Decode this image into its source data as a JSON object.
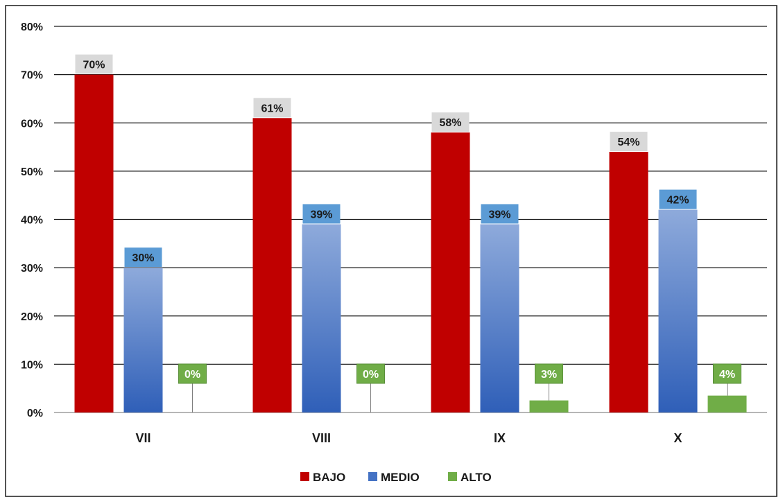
{
  "chart_data": {
    "type": "bar",
    "categories": [
      "VII",
      "VIII",
      "IX",
      "X"
    ],
    "series": [
      {
        "name": "BAJO",
        "values": [
          0.7,
          0.61,
          0.58,
          0.54
        ],
        "labels": [
          "70%",
          "61%",
          "58%",
          "54%"
        ],
        "color": "#c00000",
        "label_bg": "#d9d9d9"
      },
      {
        "name": "MEDIO",
        "values": [
          0.3,
          0.39,
          0.39,
          0.42
        ],
        "labels": [
          "30%",
          "39%",
          "39%",
          "42%"
        ],
        "color": "#4472c4",
        "label_bg": "#5b9bd5"
      },
      {
        "name": "ALTO",
        "values": [
          0.0,
          0.0,
          0.025,
          0.035
        ],
        "labels": [
          "0%",
          "0%",
          "3%",
          "4%"
        ],
        "color": "#70ad47",
        "label_bg": "#70ad47"
      }
    ],
    "yaxis": {
      "ticks": [
        "0%",
        "10%",
        "20%",
        "30%",
        "40%",
        "50%",
        "60%",
        "70%",
        "80%"
      ],
      "min": 0,
      "max": 0.8
    },
    "grid": true,
    "legend_position": "bottom"
  }
}
